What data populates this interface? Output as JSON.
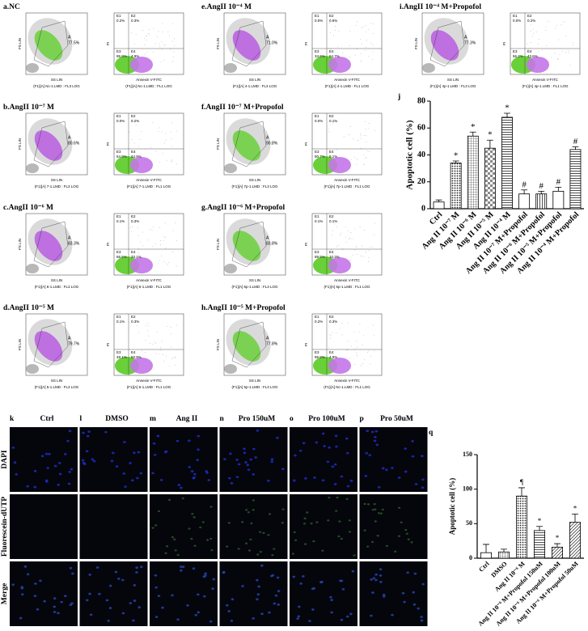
{
  "flow": {
    "axes": {
      "fs": "FS LIN",
      "ss": "SS LIN",
      "pi": "PI",
      "annexin": "Annexin V-FITC",
      "gate": "A"
    },
    "quadrant_names": [
      "E1",
      "E2",
      "E3",
      "E4"
    ],
    "panels": [
      {
        "label": "a.NC",
        "gate": "77.5%",
        "quadrants": [
          "0.2%",
          "0.3%",
          "95.8%",
          "4.9%"
        ],
        "captions": [
          "(F1)[A] Nc-1.LMD : FL3 LOG",
          "(F1)[A] Nc-1.LMD : FL1 LOG"
        ],
        "color": "#6ad03a"
      },
      {
        "label": "b.AngII 10⁻⁷ M",
        "gate": "80.6%",
        "quadrants": [
          "0.0%",
          "0.2%",
          "54.9%",
          "44.9%"
        ],
        "captions": [
          "(F1)[A] 7-1.LMD : FL3 LOG",
          "(F1)[A] 7-1.LMD : FL1 LOG"
        ],
        "color": "#b85ce0"
      },
      {
        "label": "c.AngII 10⁻⁶ M",
        "gate": "83.3%",
        "quadrants": [
          "0.1%",
          "0.3%",
          "66.5%",
          "33.1%"
        ],
        "captions": [
          "(F1)[A] 6-1.LMD : FL3 LOG",
          "(F1)[A] 6-1.LMD : FL1 LOG"
        ],
        "color": "#b85ce0"
      },
      {
        "label": "d.AngII 10⁻⁵ M",
        "gate": "79.7%",
        "quadrants": [
          "0.1%",
          "0.3%",
          "48.1%",
          "50.9%"
        ],
        "captions": [
          "(F1)[A] 5-1.LMD : FL3 LOG",
          "(F1)[A] 5-1.LMD : FL1 LOG"
        ],
        "color": "#b85ce0"
      },
      {
        "label": "e.AngII 10⁻⁴ M",
        "gate": "71.0%",
        "quadrants": [
          "0.0%",
          "0.6%",
          "34.6%",
          "64.7%"
        ],
        "captions": [
          "(F1)[A] 4-1.LMD : FL3 LOG",
          "(F1)[A] 4-1.LMD : FL1 LOG"
        ],
        "color": "#b85ce0"
      },
      {
        "label": "f.AngII 10⁻⁷ M+Propofol",
        "gate": "90.8%",
        "quadrants": [
          "0.0%",
          "0.1%",
          "90.7%",
          "9.1%"
        ],
        "captions": [
          "(F1)[A] 7p-1.LMD : FL3 LOG",
          "(F1)[A] 7p-1.LMD : FL1 LOG"
        ],
        "color": "#6ad03a"
      },
      {
        "label": "g.AngII 10⁻⁶ M+Propofol",
        "gate": "83.8%",
        "quadrants": [
          "0.1%",
          "0.1%",
          "89.5%",
          "10.3%"
        ],
        "captions": [
          "(F1)[A] 6p-1.LMD : FL3 LOG",
          "(F1)[A] 6p-1.LMD : FL1 LOG"
        ],
        "color": "#6ad03a"
      },
      {
        "label": "h.AngII 10⁻⁵ M+Propofol",
        "gate": "77.8%",
        "quadrants": [
          "0.2%",
          "0.3%",
          "95.8%",
          "4.9%"
        ],
        "captions": [
          "(F1)[A] 5p-1.LMD : FL3 LOG",
          "(F1)[A] Nc-1.LMD : FL1 LOG"
        ],
        "color": "#6ad03a"
      },
      {
        "label": "i.AngII 10⁻⁴ M+Propofol",
        "gate": "77.3%",
        "quadrants": [
          "0.0%",
          "0.2%",
          "56.2%",
          "43.6%"
        ],
        "captions": [
          "(F1)[A] 4p-1.LMD : FL3 LOG",
          "(F1)[A] 4p-1.LMD : FL1 LOG"
        ],
        "color": "#b85ce0"
      }
    ]
  },
  "chart_data": [
    {
      "type": "bar",
      "panel": "j",
      "y_label": "Apoptotic cell (%)",
      "categories": [
        "Ctrl",
        "Ang II 10⁻⁷ M",
        "Ang II 10⁻⁶ M",
        "Ang II 10⁻⁵ M",
        "Ang II 10⁻⁴ M",
        "Ang II 10⁻⁷ M+Propofol",
        "Ang II 10⁻⁶ M+Propofol",
        "Ang II 10⁻⁵ M+Propofol",
        "Ang II 10⁻⁴ M+Propofol"
      ],
      "values": [
        5,
        34,
        54,
        45,
        68,
        11,
        11,
        13,
        44
      ],
      "errors": [
        1.5,
        1.5,
        3,
        6,
        3,
        3,
        2,
        3,
        2
      ],
      "annotations": [
        null,
        "*",
        "*",
        "*",
        "*",
        "#",
        "#",
        "#",
        "#"
      ],
      "patterns": [
        "none",
        "dots",
        "grid",
        "checker",
        "hlines",
        "none",
        "vlines",
        "none",
        "hlines"
      ],
      "ylim": [
        0,
        80
      ],
      "yticks": [
        0,
        20,
        40,
        60,
        80
      ]
    },
    {
      "type": "bar",
      "panel": "q",
      "y_label": "Apoptotic cell (%)",
      "categories": [
        "Ctrl",
        "DMSO",
        "Ang II 10⁻⁶ M",
        "Ang II 10⁻⁶ M+Propofol 150uM",
        "Ang II 10⁻⁶ M+Propofol 100uM",
        "Ang II 10⁻⁶ M+Propofol 50uM"
      ],
      "values": [
        8,
        9,
        90,
        40,
        16,
        52
      ],
      "errors": [
        12,
        4,
        12,
        6,
        5,
        12
      ],
      "annotations": [
        null,
        null,
        "¶",
        "*",
        "*",
        "*"
      ],
      "patterns": [
        "none",
        "grid",
        "dots",
        "hlines",
        "diag",
        "diag"
      ],
      "ylim": [
        0,
        150
      ],
      "yticks": [
        0,
        50,
        100,
        150
      ]
    }
  ],
  "microscopy": {
    "columns": [
      {
        "letter": "k",
        "title": "Ctrl"
      },
      {
        "letter": "l",
        "title": "DMSO"
      },
      {
        "letter": "m",
        "title": "Ang II"
      },
      {
        "letter": "n",
        "title": "Pro 150uM"
      },
      {
        "letter": "o",
        "title": "Pro 100uM"
      },
      {
        "letter": "p",
        "title": "Pro 50uM"
      }
    ],
    "rows": [
      "DAPI",
      "Fluorescein-dUTP",
      "Merge"
    ]
  }
}
